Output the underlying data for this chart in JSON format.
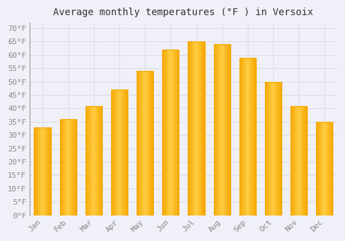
{
  "title": "Average monthly temperatures (°F ) in Versoix",
  "months": [
    "Jan",
    "Feb",
    "Mar",
    "Apr",
    "May",
    "Jun",
    "Jul",
    "Aug",
    "Sep",
    "Oct",
    "Nov",
    "Dec"
  ],
  "values": [
    33,
    36,
    41,
    47,
    54,
    62,
    65,
    64,
    59,
    50,
    41,
    35
  ],
  "bar_color_center": "#FFCC44",
  "bar_color_edge": "#F5A800",
  "background_color": "#F0F0F8",
  "grid_color": "#DDDDE8",
  "yticks": [
    0,
    5,
    10,
    15,
    20,
    25,
    30,
    35,
    40,
    45,
    50,
    55,
    60,
    65,
    70
  ],
  "ylim": [
    0,
    72
  ],
  "title_fontsize": 10,
  "tick_fontsize": 8,
  "tick_color": "#888888",
  "title_color": "#333333",
  "font_family": "monospace",
  "bar_width": 0.65
}
